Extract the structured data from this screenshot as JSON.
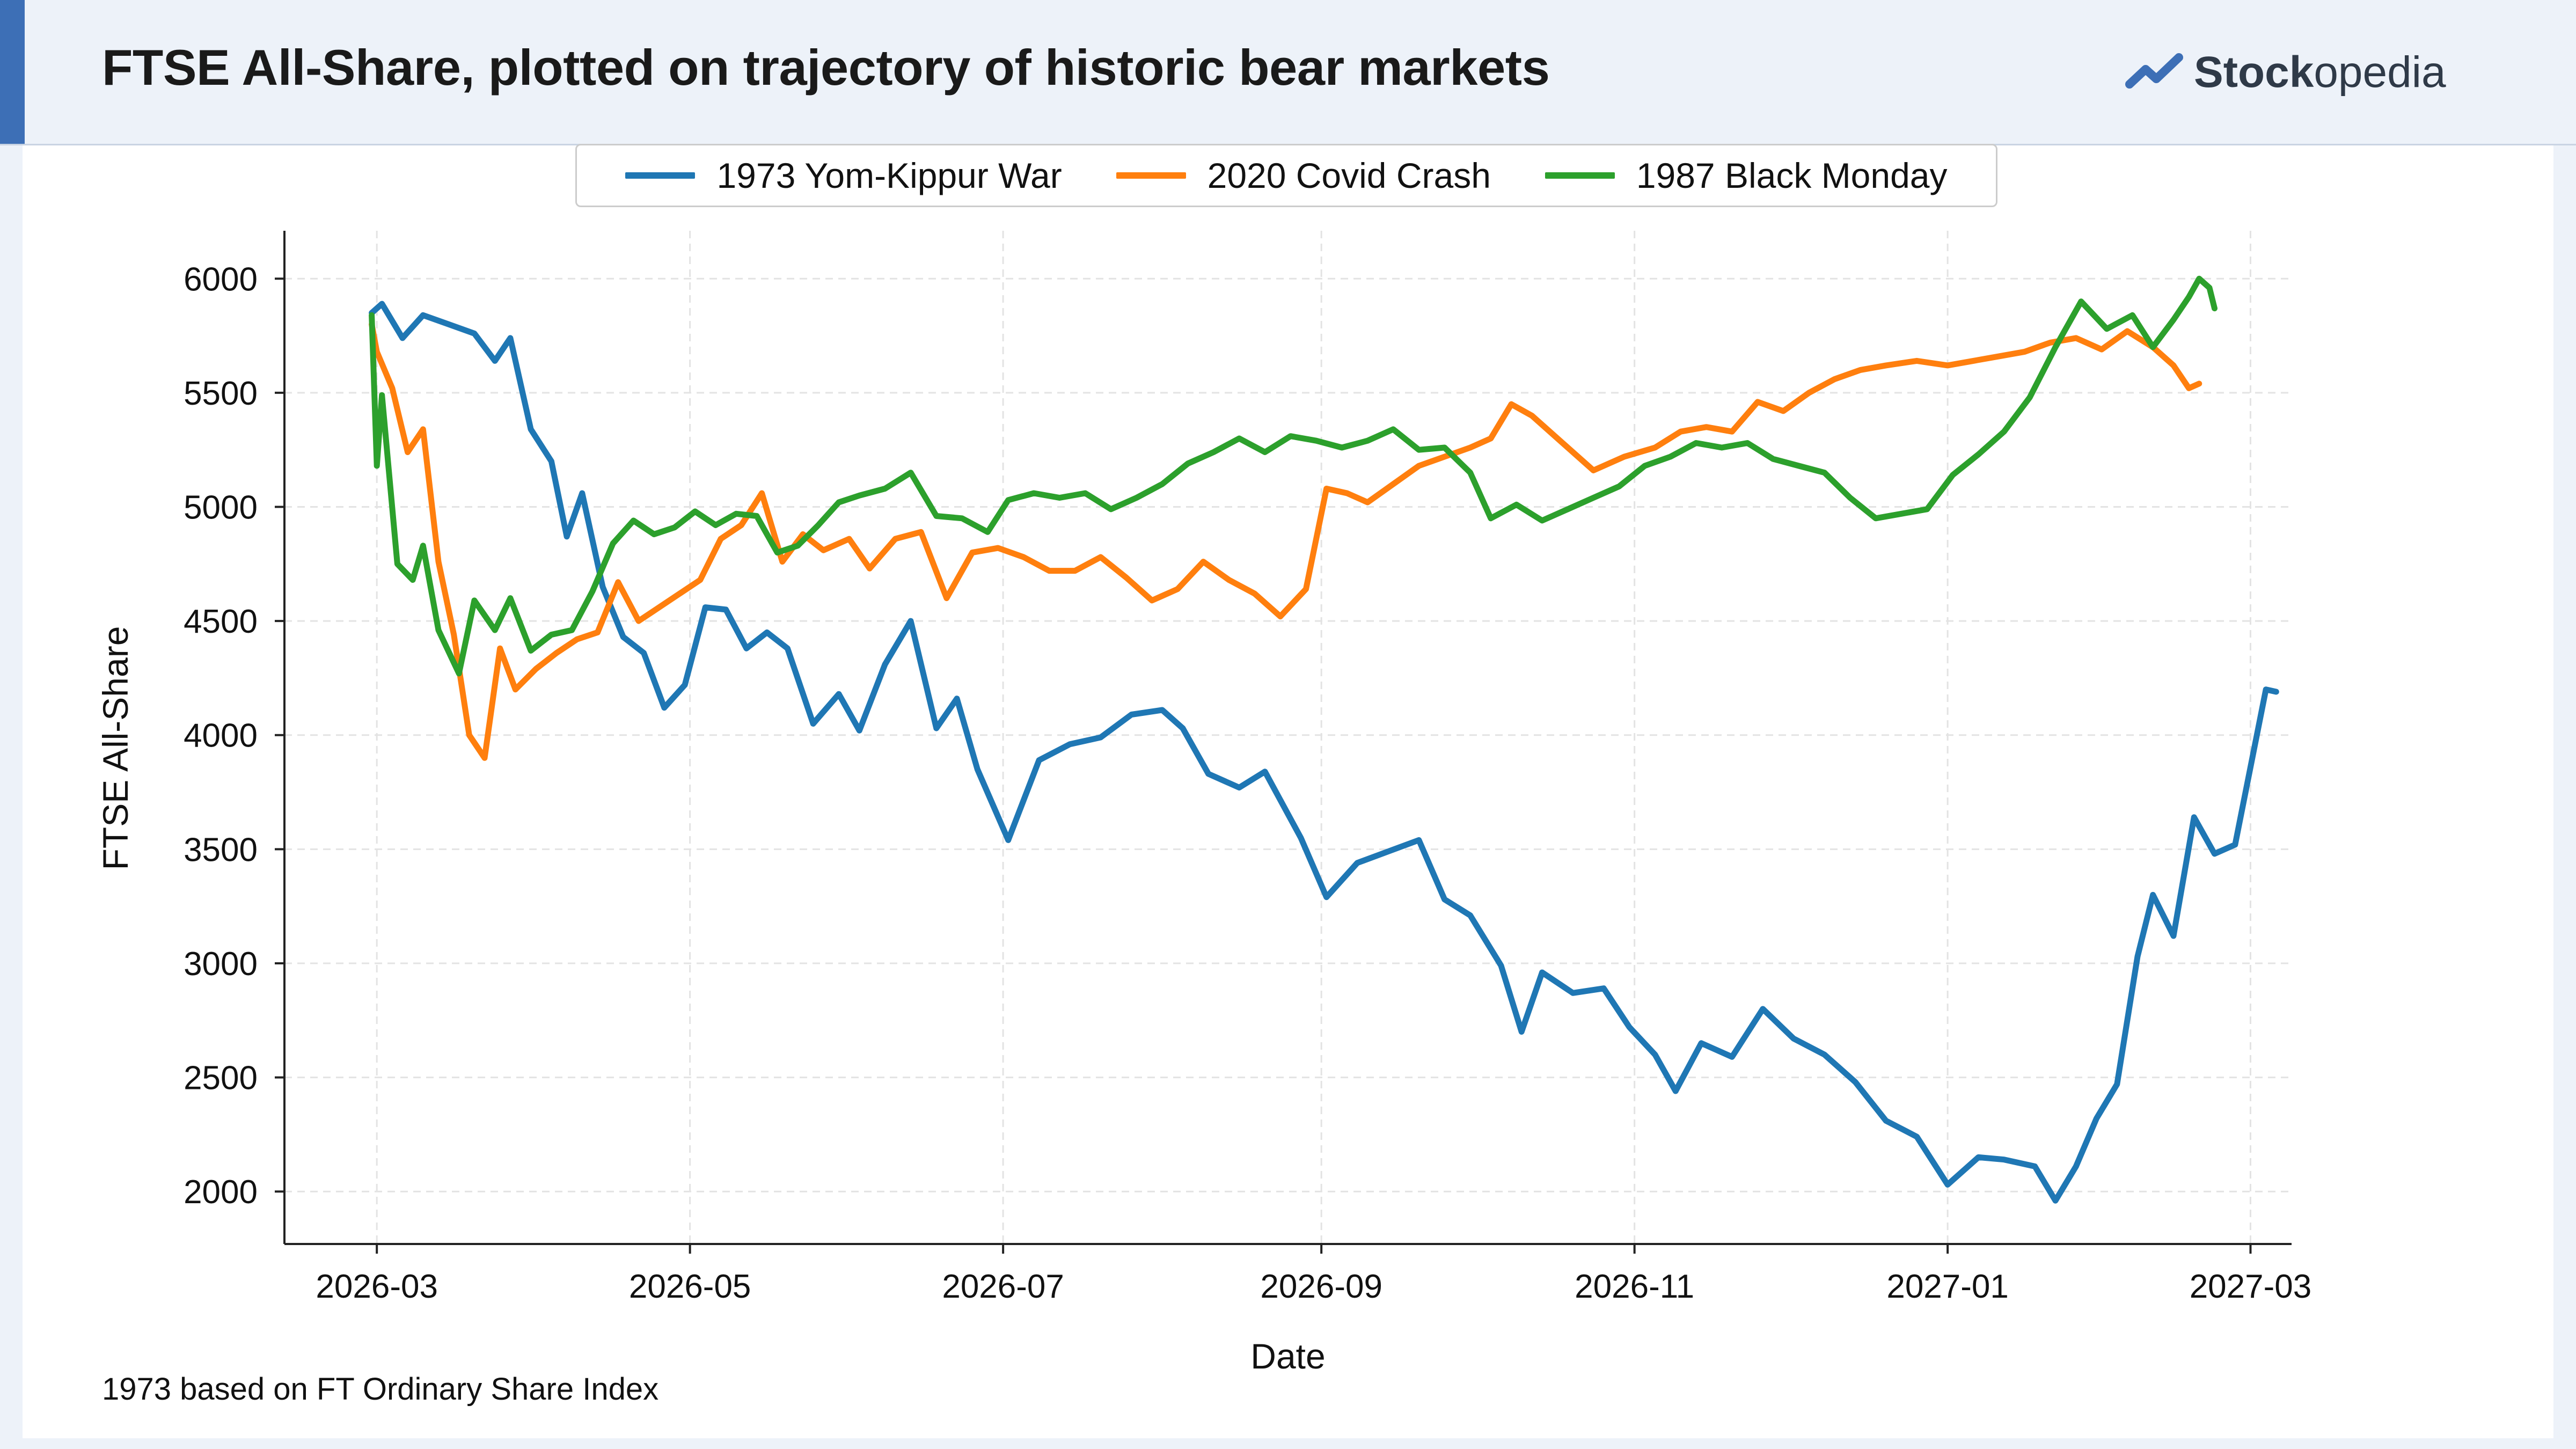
{
  "header": {
    "title": "FTSE All-Share, plotted on trajectory of historic bear markets",
    "brand_bold": "Stock",
    "brand_light": "opedia"
  },
  "footnote": "1973 based on FT Ordinary Share Index",
  "colors": {
    "accent": "#3d6fb6",
    "series_1973": "#1f77b4",
    "series_2020": "#ff7f0e",
    "series_1987": "#2ca02c"
  },
  "chart_data": {
    "type": "line",
    "title": "FTSE All-Share, plotted on trajectory of historic bear markets",
    "xlabel": "Date",
    "ylabel": "FTSE All-Share",
    "xlim": [
      "2026-02-11",
      "2027-03-09"
    ],
    "ylim": [
      1770,
      6210
    ],
    "x_ticks": [
      "2026-03",
      "2026-05",
      "2026-07",
      "2026-09",
      "2026-11",
      "2027-01",
      "2027-03"
    ],
    "y_ticks": [
      2000,
      2500,
      3000,
      3500,
      4000,
      4500,
      5000,
      5500,
      6000
    ],
    "grid": true,
    "legend_position": "top-center",
    "series": [
      {
        "name": "1973 Yom-Kippur War",
        "color": "#1f77b4",
        "points": [
          [
            "2026-02-28",
            5850
          ],
          [
            "2026-03-02",
            5890
          ],
          [
            "2026-03-06",
            5740
          ],
          [
            "2026-03-10",
            5840
          ],
          [
            "2026-03-15",
            5800
          ],
          [
            "2026-03-20",
            5760
          ],
          [
            "2026-03-24",
            5640
          ],
          [
            "2026-03-27",
            5740
          ],
          [
            "2026-03-31",
            5340
          ],
          [
            "2026-04-04",
            5200
          ],
          [
            "2026-04-07",
            4870
          ],
          [
            "2026-04-10",
            5060
          ],
          [
            "2026-04-14",
            4650
          ],
          [
            "2026-04-18",
            4430
          ],
          [
            "2026-04-22",
            4360
          ],
          [
            "2026-04-26",
            4120
          ],
          [
            "2026-04-30",
            4220
          ],
          [
            "2026-05-04",
            4560
          ],
          [
            "2026-05-08",
            4550
          ],
          [
            "2026-05-12",
            4380
          ],
          [
            "2026-05-16",
            4450
          ],
          [
            "2026-05-20",
            4380
          ],
          [
            "2026-05-25",
            4050
          ],
          [
            "2026-05-30",
            4180
          ],
          [
            "2026-06-03",
            4020
          ],
          [
            "2026-06-08",
            4310
          ],
          [
            "2026-06-13",
            4500
          ],
          [
            "2026-06-18",
            4030
          ],
          [
            "2026-06-22",
            4160
          ],
          [
            "2026-06-26",
            3850
          ],
          [
            "2026-07-02",
            3540
          ],
          [
            "2026-07-08",
            3890
          ],
          [
            "2026-07-14",
            3960
          ],
          [
            "2026-07-20",
            3990
          ],
          [
            "2026-07-26",
            4090
          ],
          [
            "2026-08-01",
            4110
          ],
          [
            "2026-08-05",
            4030
          ],
          [
            "2026-08-10",
            3830
          ],
          [
            "2026-08-16",
            3770
          ],
          [
            "2026-08-21",
            3840
          ],
          [
            "2026-08-28",
            3550
          ],
          [
            "2026-09-02",
            3290
          ],
          [
            "2026-09-08",
            3440
          ],
          [
            "2026-09-14",
            3490
          ],
          [
            "2026-09-20",
            3540
          ],
          [
            "2026-09-25",
            3280
          ],
          [
            "2026-09-30",
            3210
          ],
          [
            "2026-10-06",
            2990
          ],
          [
            "2026-10-10",
            2700
          ],
          [
            "2026-10-14",
            2960
          ],
          [
            "2026-10-20",
            2870
          ],
          [
            "2026-10-26",
            2890
          ],
          [
            "2026-10-31",
            2720
          ],
          [
            "2026-11-05",
            2600
          ],
          [
            "2026-11-09",
            2440
          ],
          [
            "2026-11-14",
            2650
          ],
          [
            "2026-11-20",
            2590
          ],
          [
            "2026-11-26",
            2800
          ],
          [
            "2026-12-02",
            2670
          ],
          [
            "2026-12-08",
            2600
          ],
          [
            "2026-12-14",
            2480
          ],
          [
            "2026-12-20",
            2310
          ],
          [
            "2026-12-26",
            2240
          ],
          [
            "2027-01-01",
            2030
          ],
          [
            "2027-01-07",
            2150
          ],
          [
            "2027-01-12",
            2140
          ],
          [
            "2027-01-18",
            2110
          ],
          [
            "2027-01-22",
            1960
          ],
          [
            "2027-01-26",
            2110
          ],
          [
            "2027-01-30",
            2320
          ],
          [
            "2027-02-03",
            2470
          ],
          [
            "2027-02-07",
            3030
          ],
          [
            "2027-02-10",
            3300
          ],
          [
            "2027-02-14",
            3120
          ],
          [
            "2027-02-18",
            3640
          ],
          [
            "2027-02-22",
            3480
          ],
          [
            "2027-02-26",
            3520
          ],
          [
            "2027-03-01",
            3860
          ],
          [
            "2027-03-04",
            4200
          ],
          [
            "2027-03-06",
            4190
          ]
        ]
      },
      {
        "name": "2020 Covid Crash",
        "color": "#ff7f0e",
        "points": [
          [
            "2026-02-28",
            5800
          ],
          [
            "2026-03-01",
            5680
          ],
          [
            "2026-03-04",
            5520
          ],
          [
            "2026-03-07",
            5240
          ],
          [
            "2026-03-10",
            5340
          ],
          [
            "2026-03-13",
            4760
          ],
          [
            "2026-03-16",
            4440
          ],
          [
            "2026-03-19",
            4000
          ],
          [
            "2026-03-22",
            3900
          ],
          [
            "2026-03-25",
            4380
          ],
          [
            "2026-03-28",
            4200
          ],
          [
            "2026-04-01",
            4290
          ],
          [
            "2026-04-05",
            4360
          ],
          [
            "2026-04-09",
            4420
          ],
          [
            "2026-04-13",
            4450
          ],
          [
            "2026-04-17",
            4670
          ],
          [
            "2026-04-21",
            4500
          ],
          [
            "2026-04-25",
            4560
          ],
          [
            "2026-04-29",
            4620
          ],
          [
            "2026-05-03",
            4680
          ],
          [
            "2026-05-07",
            4860
          ],
          [
            "2026-05-11",
            4920
          ],
          [
            "2026-05-15",
            5060
          ],
          [
            "2026-05-19",
            4760
          ],
          [
            "2026-05-23",
            4880
          ],
          [
            "2026-05-27",
            4810
          ],
          [
            "2026-06-01",
            4860
          ],
          [
            "2026-06-05",
            4730
          ],
          [
            "2026-06-10",
            4860
          ],
          [
            "2026-06-15",
            4890
          ],
          [
            "2026-06-20",
            4600
          ],
          [
            "2026-06-25",
            4800
          ],
          [
            "2026-06-30",
            4820
          ],
          [
            "2026-07-05",
            4780
          ],
          [
            "2026-07-10",
            4720
          ],
          [
            "2026-07-15",
            4720
          ],
          [
            "2026-07-20",
            4780
          ],
          [
            "2026-07-25",
            4690
          ],
          [
            "2026-07-30",
            4590
          ],
          [
            "2026-08-04",
            4640
          ],
          [
            "2026-08-09",
            4760
          ],
          [
            "2026-08-14",
            4680
          ],
          [
            "2026-08-19",
            4620
          ],
          [
            "2026-08-24",
            4520
          ],
          [
            "2026-08-29",
            4640
          ],
          [
            "2026-09-02",
            5080
          ],
          [
            "2026-09-06",
            5060
          ],
          [
            "2026-09-10",
            5020
          ],
          [
            "2026-09-15",
            5100
          ],
          [
            "2026-09-20",
            5180
          ],
          [
            "2026-09-25",
            5220
          ],
          [
            "2026-09-30",
            5260
          ],
          [
            "2026-10-04",
            5300
          ],
          [
            "2026-10-08",
            5450
          ],
          [
            "2026-10-12",
            5400
          ],
          [
            "2026-10-18",
            5280
          ],
          [
            "2026-10-24",
            5160
          ],
          [
            "2026-10-30",
            5220
          ],
          [
            "2026-11-05",
            5260
          ],
          [
            "2026-11-10",
            5330
          ],
          [
            "2026-11-15",
            5350
          ],
          [
            "2026-11-20",
            5330
          ],
          [
            "2026-11-25",
            5460
          ],
          [
            "2026-11-30",
            5420
          ],
          [
            "2026-12-05",
            5500
          ],
          [
            "2026-12-10",
            5560
          ],
          [
            "2026-12-15",
            5600
          ],
          [
            "2026-12-20",
            5620
          ],
          [
            "2026-12-26",
            5640
          ],
          [
            "2027-01-01",
            5620
          ],
          [
            "2027-01-06",
            5640
          ],
          [
            "2027-01-11",
            5660
          ],
          [
            "2027-01-16",
            5680
          ],
          [
            "2027-01-21",
            5720
          ],
          [
            "2027-01-26",
            5740
          ],
          [
            "2027-01-31",
            5690
          ],
          [
            "2027-02-05",
            5770
          ],
          [
            "2027-02-10",
            5700
          ],
          [
            "2027-02-14",
            5620
          ],
          [
            "2027-02-17",
            5520
          ],
          [
            "2027-02-19",
            5540
          ]
        ]
      },
      {
        "name": "1987 Black Monday",
        "color": "#2ca02c",
        "points": [
          [
            "2026-02-28",
            5840
          ],
          [
            "2026-03-01",
            5180
          ],
          [
            "2026-03-02",
            5490
          ],
          [
            "2026-03-05",
            4750
          ],
          [
            "2026-03-08",
            4680
          ],
          [
            "2026-03-10",
            4830
          ],
          [
            "2026-03-13",
            4460
          ],
          [
            "2026-03-17",
            4270
          ],
          [
            "2026-03-20",
            4590
          ],
          [
            "2026-03-24",
            4460
          ],
          [
            "2026-03-27",
            4600
          ],
          [
            "2026-03-31",
            4370
          ],
          [
            "2026-04-04",
            4440
          ],
          [
            "2026-04-08",
            4460
          ],
          [
            "2026-04-12",
            4630
          ],
          [
            "2026-04-16",
            4840
          ],
          [
            "2026-04-20",
            4940
          ],
          [
            "2026-04-24",
            4880
          ],
          [
            "2026-04-28",
            4910
          ],
          [
            "2026-05-02",
            4980
          ],
          [
            "2026-05-06",
            4920
          ],
          [
            "2026-05-10",
            4970
          ],
          [
            "2026-05-14",
            4960
          ],
          [
            "2026-05-18",
            4800
          ],
          [
            "2026-05-22",
            4830
          ],
          [
            "2026-05-26",
            4920
          ],
          [
            "2026-05-30",
            5020
          ],
          [
            "2026-06-03",
            5050
          ],
          [
            "2026-06-08",
            5080
          ],
          [
            "2026-06-13",
            5150
          ],
          [
            "2026-06-18",
            4960
          ],
          [
            "2026-06-23",
            4950
          ],
          [
            "2026-06-28",
            4890
          ],
          [
            "2026-07-02",
            5030
          ],
          [
            "2026-07-07",
            5060
          ],
          [
            "2026-07-12",
            5040
          ],
          [
            "2026-07-17",
            5060
          ],
          [
            "2026-07-22",
            4990
          ],
          [
            "2026-07-27",
            5040
          ],
          [
            "2026-08-01",
            5100
          ],
          [
            "2026-08-06",
            5190
          ],
          [
            "2026-08-11",
            5240
          ],
          [
            "2026-08-16",
            5300
          ],
          [
            "2026-08-21",
            5240
          ],
          [
            "2026-08-26",
            5310
          ],
          [
            "2026-08-31",
            5290
          ],
          [
            "2026-09-05",
            5260
          ],
          [
            "2026-09-10",
            5290
          ],
          [
            "2026-09-15",
            5340
          ],
          [
            "2026-09-20",
            5250
          ],
          [
            "2026-09-25",
            5260
          ],
          [
            "2026-09-30",
            5150
          ],
          [
            "2026-10-04",
            4950
          ],
          [
            "2026-10-09",
            5010
          ],
          [
            "2026-10-14",
            4940
          ],
          [
            "2026-10-19",
            4990
          ],
          [
            "2026-10-24",
            5040
          ],
          [
            "2026-10-29",
            5090
          ],
          [
            "2026-11-03",
            5180
          ],
          [
            "2026-11-08",
            5220
          ],
          [
            "2026-11-13",
            5280
          ],
          [
            "2026-11-18",
            5260
          ],
          [
            "2026-11-23",
            5280
          ],
          [
            "2026-11-28",
            5210
          ],
          [
            "2026-12-03",
            5180
          ],
          [
            "2026-12-08",
            5150
          ],
          [
            "2026-12-13",
            5040
          ],
          [
            "2026-12-18",
            4950
          ],
          [
            "2026-12-23",
            4970
          ],
          [
            "2026-12-28",
            4990
          ],
          [
            "2027-01-02",
            5140
          ],
          [
            "2027-01-07",
            5230
          ],
          [
            "2027-01-12",
            5330
          ],
          [
            "2027-01-17",
            5480
          ],
          [
            "2027-01-22",
            5700
          ],
          [
            "2027-01-27",
            5900
          ],
          [
            "2027-02-01",
            5780
          ],
          [
            "2027-02-06",
            5840
          ],
          [
            "2027-02-10",
            5700
          ],
          [
            "2027-02-14",
            5820
          ],
          [
            "2027-02-17",
            5920
          ],
          [
            "2027-02-19",
            6000
          ],
          [
            "2027-02-21",
            5960
          ],
          [
            "2027-02-22",
            5870
          ]
        ]
      }
    ]
  }
}
